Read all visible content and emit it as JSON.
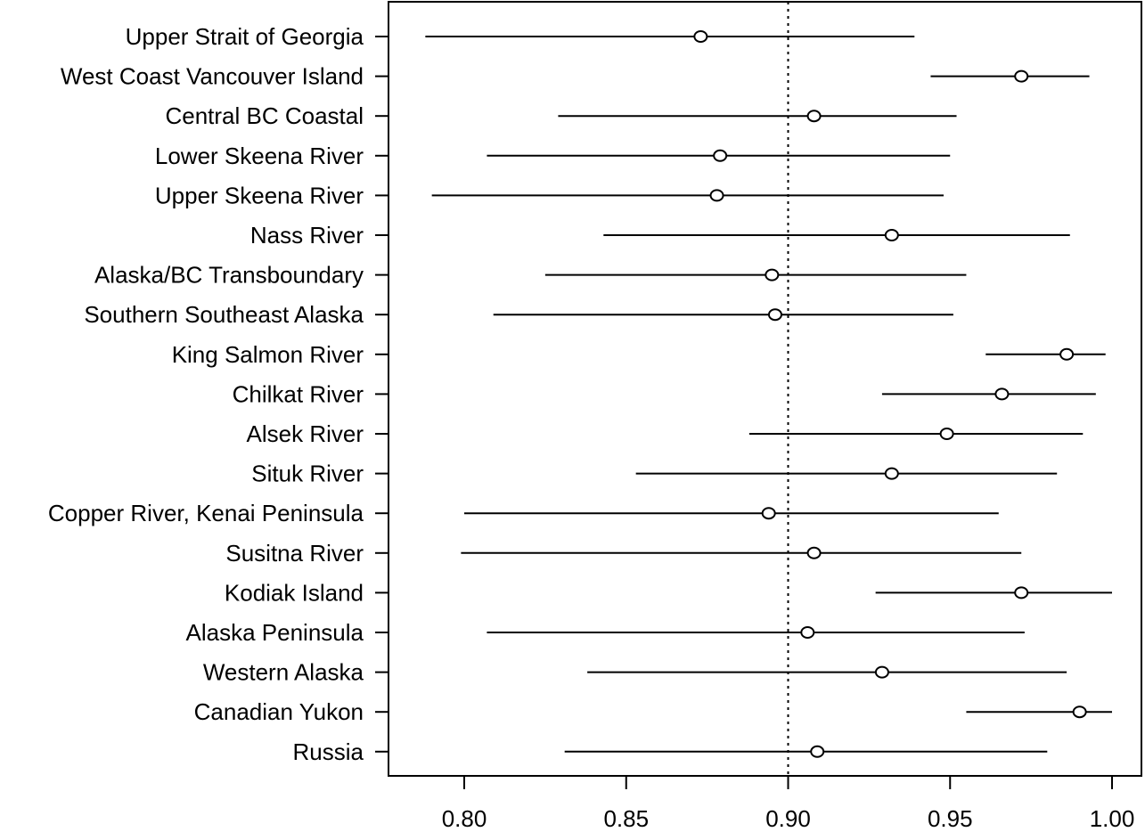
{
  "chart_data": {
    "type": "scatter",
    "title": "",
    "xlabel": "",
    "ylabel": "",
    "xlim": [
      0.78,
      1.0
    ],
    "xticks": [
      "0.80",
      "0.85",
      "0.90",
      "0.95",
      "1.00"
    ],
    "xtick_values": [
      0.8,
      0.85,
      0.9,
      0.95,
      1.0
    ],
    "reference_line": 0.9,
    "categories": [
      "Upper Strait of Georgia",
      "West Coast Vancouver Island",
      "Central BC Coastal",
      "Lower Skeena River",
      "Upper Skeena River",
      "Nass River",
      "Alaska/BC Transboundary",
      "Southern Southeast Alaska",
      "King Salmon River",
      "Chilkat River",
      "Alsek River",
      "Situk River",
      "Copper River, Kenai Peninsula",
      "Susitna River",
      "Kodiak Island",
      "Alaska Peninsula",
      "Western Alaska",
      "Canadian Yukon",
      "Russia"
    ],
    "points": [
      0.873,
      0.972,
      0.908,
      0.879,
      0.878,
      0.932,
      0.895,
      0.896,
      0.986,
      0.966,
      0.949,
      0.932,
      0.894,
      0.908,
      0.972,
      0.906,
      0.929,
      0.99,
      0.909
    ],
    "lower": [
      0.788,
      0.944,
      0.829,
      0.807,
      0.79,
      0.843,
      0.825,
      0.809,
      0.961,
      0.929,
      0.888,
      0.853,
      0.8,
      0.799,
      0.927,
      0.807,
      0.838,
      0.955,
      0.831
    ],
    "upper": [
      0.939,
      0.993,
      0.952,
      0.95,
      0.948,
      0.987,
      0.955,
      0.951,
      0.998,
      0.995,
      0.991,
      0.983,
      0.965,
      0.972,
      1.0,
      0.973,
      0.986,
      1.0,
      0.98
    ],
    "grid": false,
    "legend": "none"
  }
}
